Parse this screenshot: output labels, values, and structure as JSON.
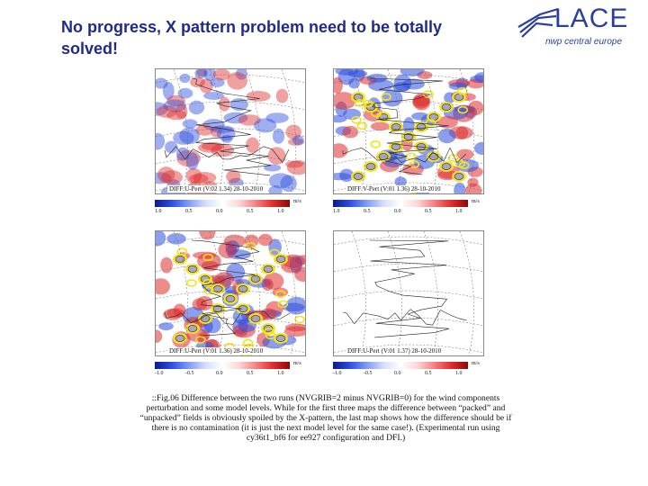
{
  "slide": {
    "title": "No progress, X pattern problem need to be totally solved!"
  },
  "logo": {
    "name": "LACE",
    "subtitle": "nwp central europe"
  },
  "panels": [
    {
      "label": "DIFF:U-Pert (V:02 1.34) 28-10-2010",
      "unit": "m/s",
      "ticks": [
        "1.0",
        "0.5",
        "0.0",
        "0.5",
        "1.0"
      ],
      "style": "weak"
    },
    {
      "label": "DIFF:V-Pert (V:01 1.36) 28-10-2010",
      "unit": "m/s",
      "ticks": [
        "1.0",
        "0.5",
        "0.0",
        "0.5",
        "1.0"
      ],
      "style": "strong"
    },
    {
      "label": "DIFF:U-Pert (V:01 1.36) 28-10-2010",
      "unit": "m/s",
      "ticks": [
        "-1.0",
        "-0.5",
        "0.0",
        "0.5",
        "1.0"
      ],
      "style": "strong"
    },
    {
      "label": "DIFF:U-Pert (V:01 1.37) 28-10-2010",
      "unit": "m/s",
      "ticks": [
        "-1.0",
        "-0.5",
        "0.0",
        "0.5",
        "1.0"
      ],
      "style": "blank"
    }
  ],
  "caption": {
    "text": "::Fig.06 Difference between the two runs (NVGRIB=2 minus NVGRIB=0) for the wind components perturbation and some model levels. While for the first three maps the difference between “packed” and “unpacked” fields is obviously spoiled by the X-pattern, the last map shows how the difference should be if there is no contamination (it is just the next model level for the same case!). (Experimental run using cy36t1_bf6 for ee927 configuration and DFI.)"
  },
  "colors": {
    "title": "#1f2a8a",
    "logo": "#2a3f9e",
    "blue": "#2d4ee0",
    "red": "#e02d2d",
    "yellow": "#f5e31a",
    "grey": "#a8a8b8"
  }
}
